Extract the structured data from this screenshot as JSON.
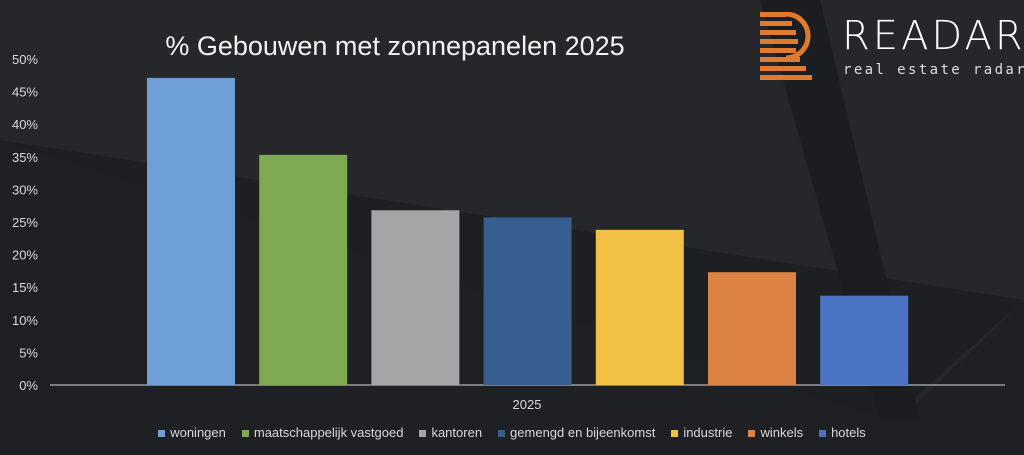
{
  "logo": {
    "brand": "READAR",
    "tagline": "real estate radar",
    "accent": "#e07a2e"
  },
  "chart_data": {
    "type": "bar",
    "title": "% Gebouwen met zonnepanelen 2025",
    "xlabel": "",
    "ylabel": "",
    "categories": [
      "2025"
    ],
    "ylim": [
      0,
      50
    ],
    "yticks": [
      "0%",
      "5%",
      "10%",
      "15%",
      "20%",
      "25%",
      "30%",
      "35%",
      "40%",
      "45%",
      "50%"
    ],
    "grid": false,
    "legend_position": "bottom",
    "series": [
      {
        "name": "woningen",
        "values": [
          47.1
        ],
        "color": "#6f9fd8"
      },
      {
        "name": "maatschappelijk vastgoed",
        "values": [
          35.3
        ],
        "color": "#7eab52"
      },
      {
        "name": "kantoren",
        "values": [
          26.8
        ],
        "color": "#a5a5a5"
      },
      {
        "name": "gemengd en bijeenkomst",
        "values": [
          25.7
        ],
        "color": "#365f8f"
      },
      {
        "name": "industrie",
        "values": [
          23.8
        ],
        "color": "#f2c042"
      },
      {
        "name": "winkels",
        "values": [
          17.3
        ],
        "color": "#dc8344"
      },
      {
        "name": "hotels",
        "values": [
          13.7
        ],
        "color": "#4c74c4"
      }
    ]
  }
}
